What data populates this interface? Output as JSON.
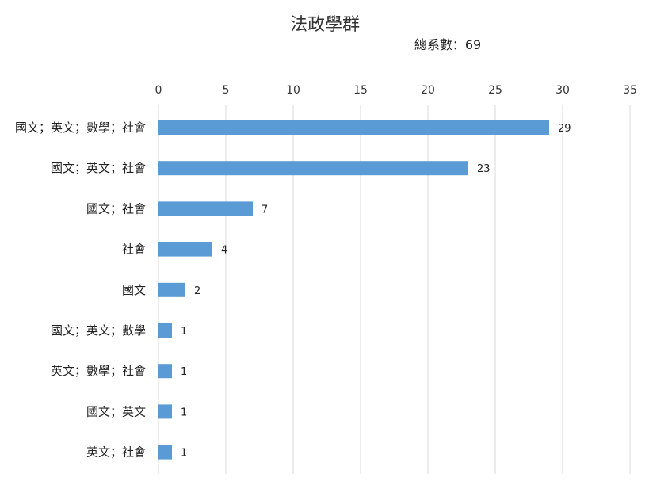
{
  "chart_data": {
    "type": "bar",
    "orientation": "horizontal",
    "title": "法政學群",
    "subtitle": "總系數：69",
    "categories": [
      "國文；英文；數學；社會",
      "國文；英文；社會",
      "國文；社會",
      "社會",
      "國文",
      "國文；英文；數學",
      "英文；數學；社會",
      "國文；英文",
      "英文；社會"
    ],
    "values": [
      29,
      23,
      7,
      4,
      2,
      1,
      1,
      1,
      1
    ],
    "xlim": [
      0,
      35
    ],
    "xticks": [
      0,
      5,
      10,
      15,
      20,
      25,
      30,
      35
    ],
    "axis_position": "top",
    "grid": true,
    "bar_color": "#5b9bd5"
  }
}
